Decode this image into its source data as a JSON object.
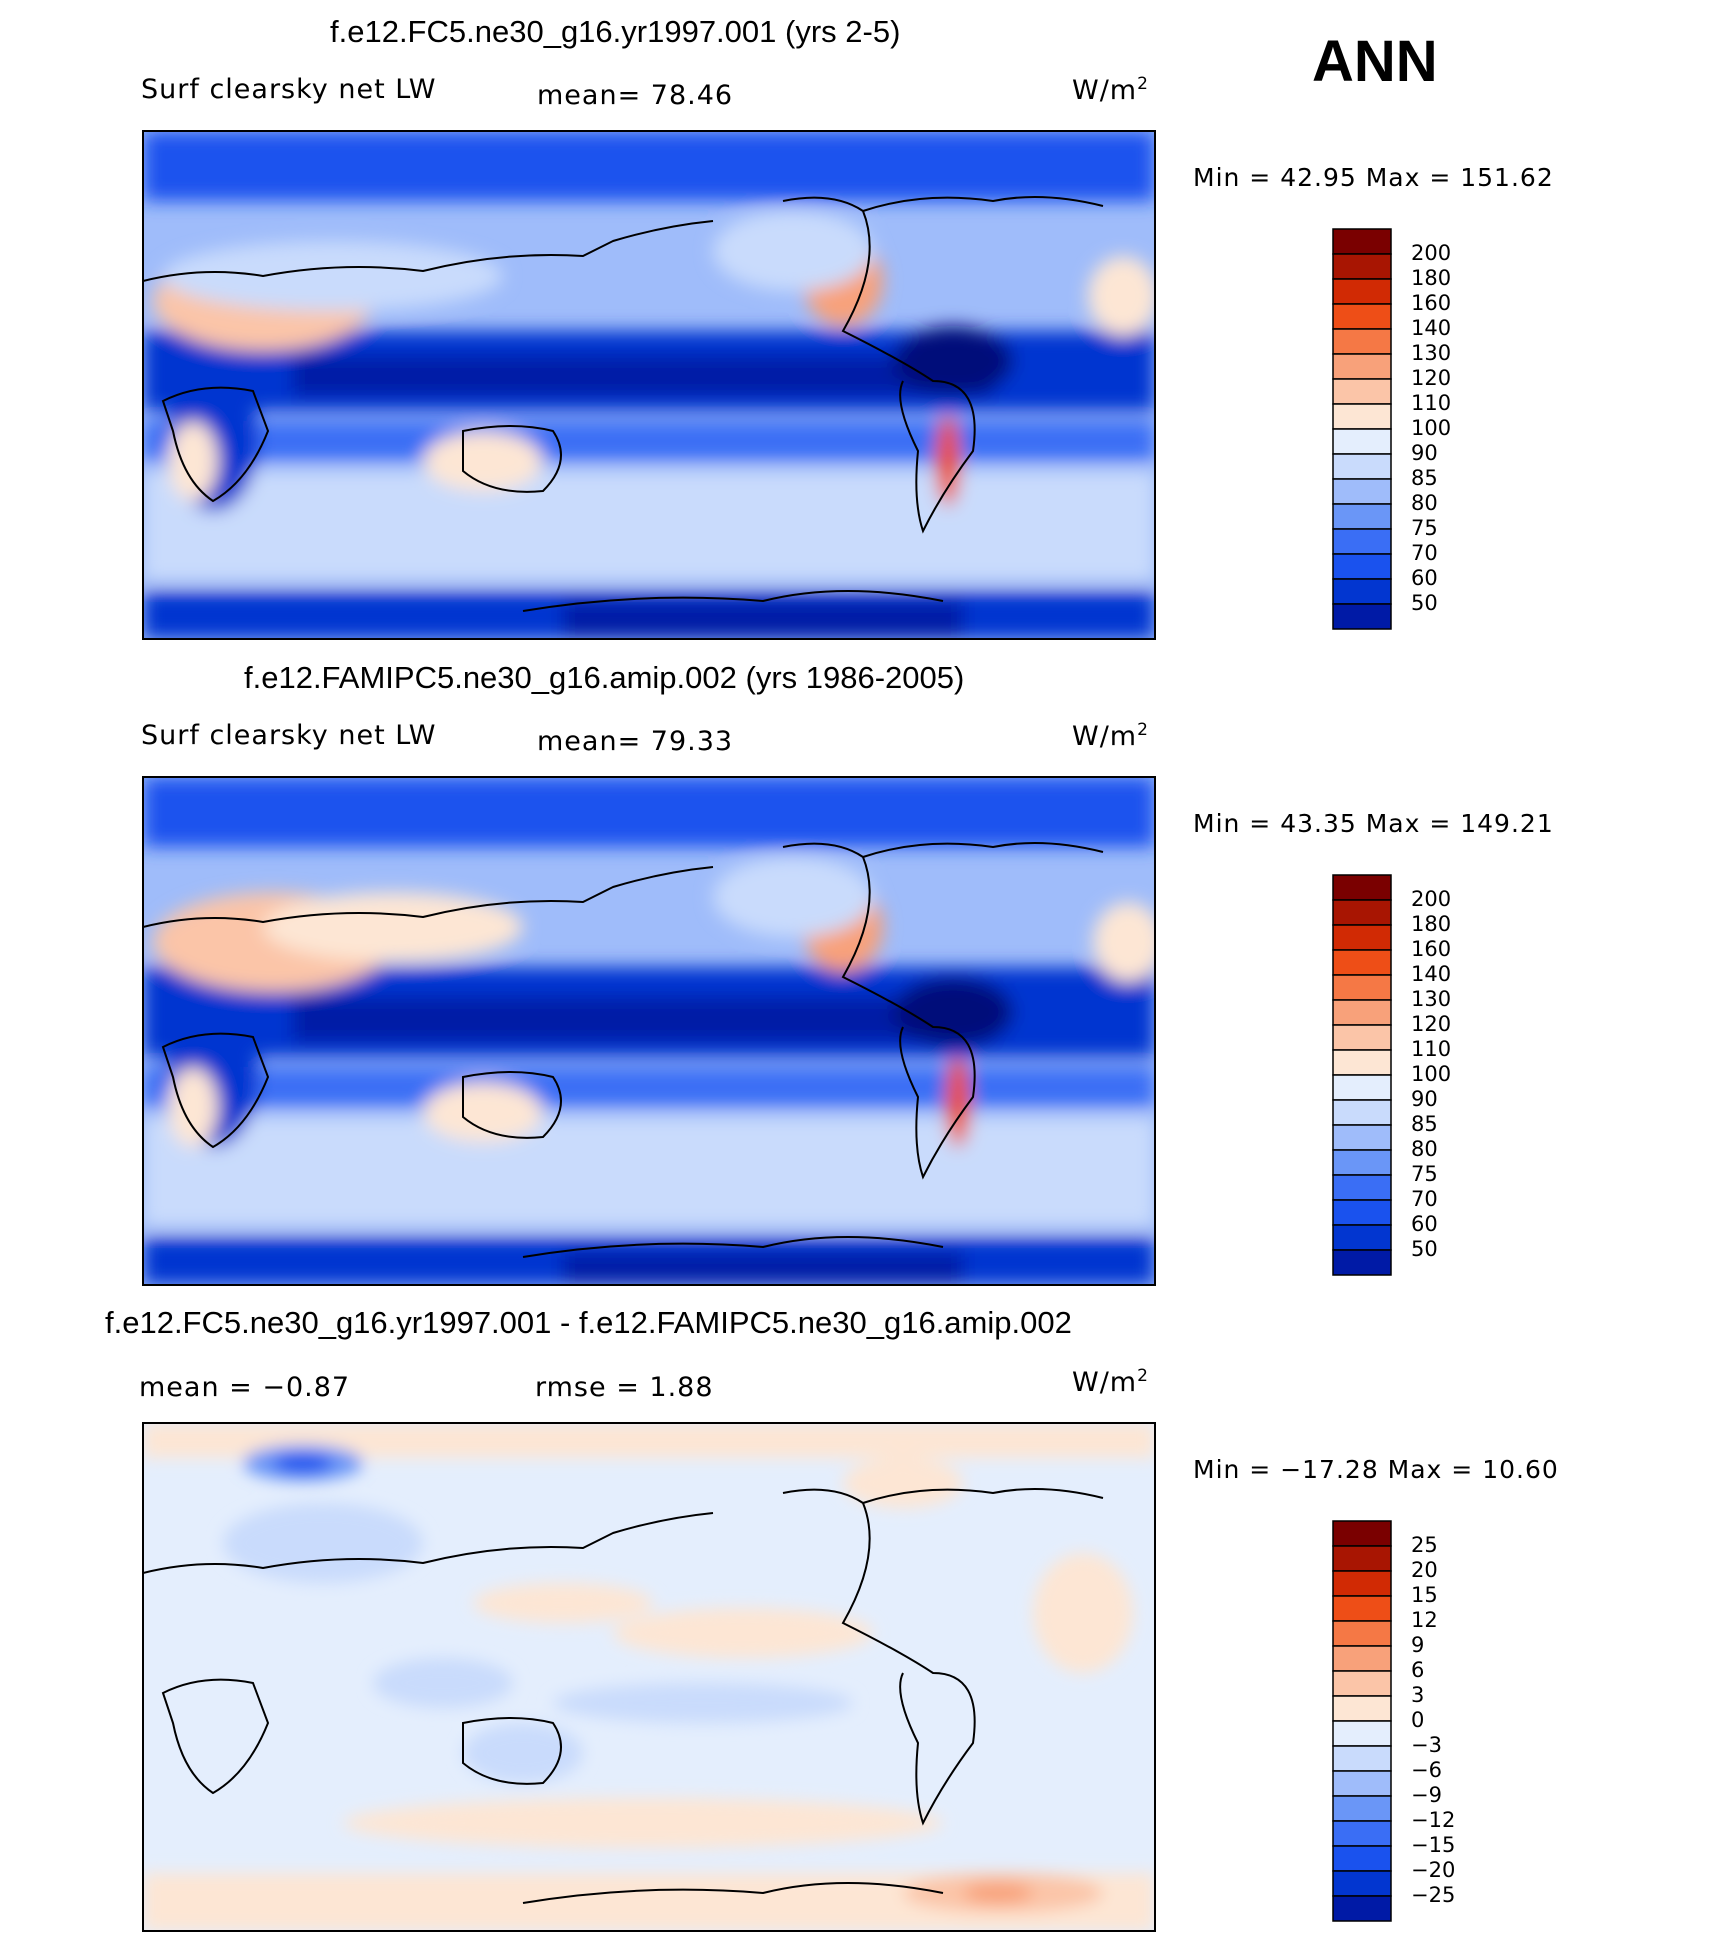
{
  "season": "ANN",
  "colors": {
    "abs_scale": [
      "#000e7a",
      "#001aa6",
      "#0236d0",
      "#1a52ee",
      "#3a6ef5",
      "#6a96f7",
      "#9fbcfa",
      "#c9dbfc",
      "#e4eefd",
      "#fde6d4",
      "#fbc5a8",
      "#f8a17a",
      "#f57845",
      "#ee4e17",
      "#d12a04",
      "#a81502",
      "#7a0000"
    ],
    "diff_scale": [
      "#000e7a",
      "#001aa6",
      "#0236d0",
      "#1a52ee",
      "#3a6ef5",
      "#6a96f7",
      "#9fbcfa",
      "#c9dbfc",
      "#e4eefd",
      "#fde6d4",
      "#fbc5a8",
      "#f8a17a",
      "#f57845",
      "#ee4e17",
      "#d12a04",
      "#a81502",
      "#7a0000"
    ]
  },
  "panels": [
    {
      "title": "f.e12.FC5.ne30_g16.yr1997.001 (yrs 2-5)",
      "variable": "Surf clearsky net LW",
      "mean_text": "mean=  78.46",
      "units": "W/m",
      "units_sup": "2",
      "min_max_text": "Min =   42.95 Max = 151.62",
      "colorbar_labels": [
        "200",
        "180",
        "160",
        "140",
        "130",
        "120",
        "110",
        "100",
        "90",
        "85",
        "80",
        "75",
        "70",
        "60",
        "50"
      ]
    },
    {
      "title": "f.e12.FAMIPC5.ne30_g16.amip.002 (yrs 1986-2005)",
      "variable": "Surf clearsky net LW",
      "mean_text": "mean=  79.33",
      "units": "W/m",
      "units_sup": "2",
      "min_max_text": "Min =   43.35 Max = 149.21",
      "colorbar_labels": [
        "200",
        "180",
        "160",
        "140",
        "130",
        "120",
        "110",
        "100",
        "90",
        "85",
        "80",
        "75",
        "70",
        "60",
        "50"
      ]
    },
    {
      "title": "f.e12.FC5.ne30_g16.yr1997.001 - f.e12.FAMIPC5.ne30_g16.amip.002",
      "mean_text": "mean =  −0.87",
      "rmse_text": "rmse =    1.88",
      "units": "W/m",
      "units_sup": "2",
      "min_max_text": "Min = −17.28 Max =   10.60",
      "colorbar_labels": [
        "25",
        "20",
        "15",
        "12",
        "9",
        "6",
        "3",
        "0",
        "−3",
        "−6",
        "−9",
        "−12",
        "−15",
        "−20",
        "−25"
      ]
    }
  ],
  "chart_data": [
    {
      "type": "heatmap",
      "title": "f.e12.FC5.ne30_g16.yr1997.001 (yrs 2-5)",
      "variable": "Surf clearsky net LW",
      "units": "W/m2",
      "mean": 78.46,
      "min": 42.95,
      "max": 151.62,
      "contour_levels": [
        50,
        60,
        70,
        75,
        80,
        85,
        90,
        100,
        110,
        120,
        130,
        140,
        160,
        180,
        200
      ]
    },
    {
      "type": "heatmap",
      "title": "f.e12.FAMIPC5.ne30_g16.amip.002 (yrs 1986-2005)",
      "variable": "Surf clearsky net LW",
      "units": "W/m2",
      "mean": 79.33,
      "min": 43.35,
      "max": 149.21,
      "contour_levels": [
        50,
        60,
        70,
        75,
        80,
        85,
        90,
        100,
        110,
        120,
        130,
        140,
        160,
        180,
        200
      ]
    },
    {
      "type": "heatmap",
      "title": "f.e12.FC5.ne30_g16.yr1997.001 - f.e12.FAMIPC5.ne30_g16.amip.002",
      "units": "W/m2",
      "mean": -0.87,
      "rmse": 1.88,
      "min": -17.28,
      "max": 10.6,
      "contour_levels": [
        -25,
        -20,
        -15,
        -12,
        -9,
        -6,
        -3,
        0,
        3,
        6,
        9,
        12,
        15,
        20,
        25
      ]
    }
  ]
}
